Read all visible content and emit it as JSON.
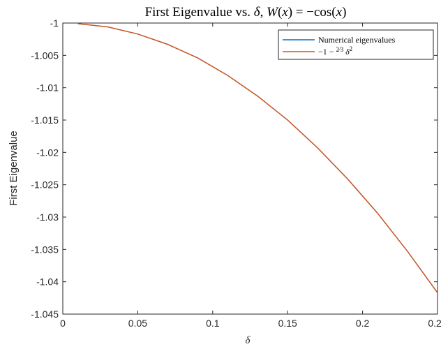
{
  "chart_data": {
    "type": "line",
    "title": "First Eigenvalue vs. δ, W(x) = −cos(x)",
    "xlabel": "δ",
    "ylabel": "First Eigenvalue",
    "xlim": [
      0,
      0.25
    ],
    "ylim": [
      -1.045,
      -1
    ],
    "xticks": [
      0,
      0.05,
      0.1,
      0.15,
      0.2,
      0.25
    ],
    "xtick_labels": [
      "0",
      "0.05",
      "0.1",
      "0.15",
      "0.2",
      "0.25"
    ],
    "yticks": [
      -1,
      -1.005,
      -1.01,
      -1.015,
      -1.02,
      -1.025,
      -1.03,
      -1.035,
      -1.04,
      -1.045
    ],
    "ytick_labels": [
      "-1",
      "-1.005",
      "-1.01",
      "-1.015",
      "-1.02",
      "-1.025",
      "-1.03",
      "-1.035",
      "-1.04",
      "-1.045"
    ],
    "grid": false,
    "legend_position": "top-right",
    "series": [
      {
        "name": "Numerical eigenvalues",
        "color": "#0072BD",
        "x": [
          0.01,
          0.03,
          0.05,
          0.07,
          0.09,
          0.11,
          0.13,
          0.15,
          0.17,
          0.19,
          0.21,
          0.23,
          0.25
        ],
        "y": [
          -1.0001,
          -1.0006,
          -1.0017,
          -1.0033,
          -1.0054,
          -1.0081,
          -1.0113,
          -1.015,
          -1.0193,
          -1.0241,
          -1.0294,
          -1.0353,
          -1.0417
        ]
      },
      {
        "name": "−1 − 2/3 δ²",
        "color": "#D95319",
        "x": [
          0.01,
          0.03,
          0.05,
          0.07,
          0.09,
          0.11,
          0.13,
          0.15,
          0.17,
          0.19,
          0.21,
          0.23,
          0.25
        ],
        "y": [
          -1.0001,
          -1.0006,
          -1.0017,
          -1.0033,
          -1.0054,
          -1.0081,
          -1.0113,
          -1.015,
          -1.0193,
          -1.0241,
          -1.0294,
          -1.0353,
          -1.0417
        ]
      }
    ]
  }
}
